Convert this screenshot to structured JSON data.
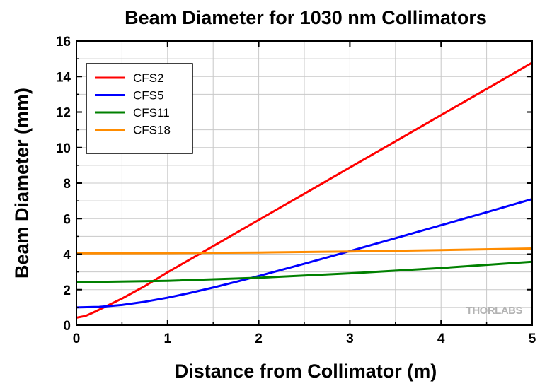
{
  "chart_data": {
    "type": "line",
    "title": "Beam Diameter for 1030 nm Collimators",
    "xlabel": "Distance from Collimator (m)",
    "ylabel": "Beam Diameter (mm)",
    "xlim": [
      0,
      5
    ],
    "ylim": [
      0,
      16
    ],
    "xticks": [
      0,
      1,
      2,
      3,
      4,
      5
    ],
    "yticks": [
      0,
      2,
      4,
      6,
      8,
      10,
      12,
      14,
      16
    ],
    "grid": true,
    "legend_position": "top-left",
    "watermark": "THORLABS",
    "series": [
      {
        "name": "CFS2",
        "color": "#ff0000",
        "x": [
          0,
          0.1,
          0.2,
          0.3,
          0.5,
          0.75,
          1,
          1.5,
          2,
          2.5,
          3,
          3.5,
          4,
          4.5,
          5
        ],
        "y": [
          0.42,
          0.52,
          0.75,
          1.0,
          1.5,
          2.2,
          2.98,
          4.45,
          5.93,
          7.4,
          8.88,
          10.35,
          11.83,
          13.3,
          14.78
        ]
      },
      {
        "name": "CFS5",
        "color": "#0000ff",
        "x": [
          0,
          0.25,
          0.5,
          0.75,
          1,
          1.25,
          1.5,
          1.75,
          2,
          2.5,
          3,
          3.5,
          4,
          4.5,
          5
        ],
        "y": [
          1.0,
          1.03,
          1.14,
          1.32,
          1.55,
          1.82,
          2.12,
          2.44,
          2.77,
          3.46,
          4.17,
          4.9,
          5.63,
          6.36,
          7.1
        ]
      },
      {
        "name": "CFS11",
        "color": "#008000",
        "x": [
          0,
          1,
          2,
          3,
          4,
          5
        ],
        "y": [
          2.42,
          2.5,
          2.67,
          2.92,
          3.22,
          3.57
        ]
      },
      {
        "name": "CFS18",
        "color": "#ff8c00",
        "x": [
          0,
          1,
          2,
          3,
          4,
          5
        ],
        "y": [
          4.05,
          4.06,
          4.09,
          4.15,
          4.23,
          4.32
        ]
      }
    ]
  }
}
